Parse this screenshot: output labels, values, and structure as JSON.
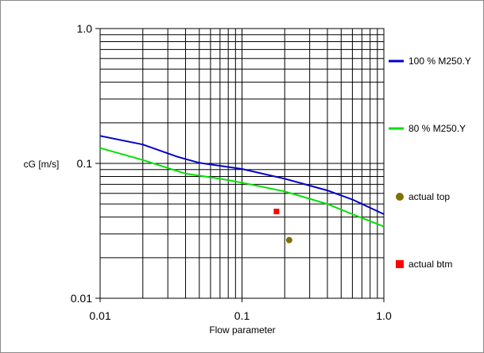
{
  "chart_data": {
    "type": "line",
    "xlabel": "Flow parameter",
    "ylabel": "cG [m/s]",
    "x_scale": "log",
    "y_scale": "log",
    "xlim": [
      0.01,
      1.0
    ],
    "ylim": [
      0.01,
      1.0
    ],
    "x_ticks": [
      "0.01",
      "0.1",
      "1.0"
    ],
    "y_ticks": [
      "0.01",
      "0.1",
      "1.0"
    ],
    "grid": true,
    "legend_position": "right",
    "series": [
      {
        "name": "100 % M250.Y",
        "kind": "line",
        "color": "#0000c8",
        "points": [
          [
            0.01,
            0.16
          ],
          [
            0.02,
            0.138
          ],
          [
            0.035,
            0.112
          ],
          [
            0.05,
            0.101
          ],
          [
            0.1,
            0.091
          ],
          [
            0.2,
            0.077
          ],
          [
            0.4,
            0.063
          ],
          [
            0.6,
            0.054
          ],
          [
            1.0,
            0.042
          ]
        ]
      },
      {
        "name": "80 % M250.Y",
        "kind": "line",
        "color": "#00e000",
        "points": [
          [
            0.01,
            0.13
          ],
          [
            0.02,
            0.106
          ],
          [
            0.04,
            0.084
          ],
          [
            0.07,
            0.077
          ],
          [
            0.1,
            0.072
          ],
          [
            0.2,
            0.062
          ],
          [
            0.4,
            0.05
          ],
          [
            0.6,
            0.042
          ],
          [
            1.0,
            0.034
          ]
        ]
      },
      {
        "name": "actual top",
        "kind": "point",
        "marker": "circle",
        "color": "#807000",
        "points": [
          [
            0.215,
            0.027
          ]
        ]
      },
      {
        "name": "actual btm",
        "kind": "point",
        "marker": "square",
        "color": "#ff0000",
        "points": [
          [
            0.175,
            0.044
          ]
        ]
      }
    ]
  }
}
